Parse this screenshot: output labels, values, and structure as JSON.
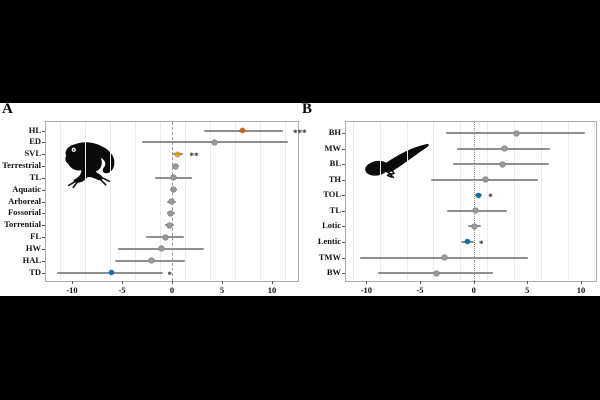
{
  "figure": {
    "background_color": "#000000",
    "strip_background": "#ffffff",
    "point_gray": "#9a9a9a",
    "errorbar_gray": "#8f8f8f",
    "accent_orange": "#d55e00",
    "accent_amber": "#e69f00",
    "accent_blue": "#0072b2"
  },
  "chart_data": [
    {
      "type": "scatter",
      "subtype": "forest-plot",
      "panel_label": "A",
      "animal_icon": "frog-silhouette",
      "xlim": [
        -12.6,
        12.6
      ],
      "xticks": [
        -10,
        -5,
        0,
        5,
        10
      ],
      "gridlines": [
        -11.25,
        -8.75,
        -6.25,
        -3.75,
        -1.25,
        1.25,
        3.75,
        6.25,
        8.75,
        11.25
      ],
      "zero_line": 0,
      "zero_line_style": "dashed",
      "grid": "minor-vertical-only",
      "legend": "none",
      "rows": [
        {
          "label": "HL",
          "value": 7.0,
          "ci": [
            3.2,
            11.1
          ],
          "color": "#d55e00",
          "sig": "***",
          "sig_x": 12.1
        },
        {
          "label": "ED",
          "value": 4.2,
          "ci": [
            -3.0,
            11.6
          ]
        },
        {
          "label": "SVL",
          "value": 0.55,
          "ci": [
            0.05,
            1.1
          ],
          "color": "#e69f00",
          "sig": "**",
          "sig_x": 1.75
        },
        {
          "label": "Terrestrial",
          "value": 0.3,
          "ci": [
            0.0,
            0.65
          ]
        },
        {
          "label": "TL",
          "value": 0.15,
          "ci": [
            -1.7,
            2.0
          ]
        },
        {
          "label": "Aquatic",
          "value": 0.1,
          "ci": [
            -0.25,
            0.45
          ]
        },
        {
          "label": "Arboreal",
          "value": -0.05,
          "ci": [
            -0.5,
            0.4
          ]
        },
        {
          "label": "Fossorial",
          "value": -0.15,
          "ci": [
            -0.55,
            0.25
          ]
        },
        {
          "label": "Torrential",
          "value": -0.3,
          "ci": [
            -0.75,
            0.15
          ]
        },
        {
          "label": "FL",
          "value": -0.7,
          "ci": [
            -2.6,
            1.2
          ]
        },
        {
          "label": "HW",
          "value": -1.1,
          "ci": [
            -5.4,
            3.2
          ]
        },
        {
          "label": "HAL",
          "value": -2.1,
          "ci": [
            -5.7,
            1.3
          ]
        },
        {
          "label": "TD",
          "value": -6.1,
          "ci": [
            -11.5,
            -0.9
          ],
          "color": "#0072b2",
          "sig": "*",
          "sig_x": -0.45
        }
      ]
    },
    {
      "type": "scatter",
      "subtype": "forest-plot",
      "panel_label": "B",
      "animal_icon": "tadpole-silhouette",
      "xlim": [
        -11.9,
        11.4
      ],
      "xticks": [
        -10,
        -5,
        0,
        5,
        10
      ],
      "gridlines": [
        -11.25,
        -8.75,
        -6.25,
        -3.75,
        -1.25,
        1.25,
        3.75,
        6.25,
        8.75,
        11.25
      ],
      "zero_line": 0,
      "zero_line_style": "dotted",
      "grid": "minor-vertical-only",
      "legend": "none",
      "rows": [
        {
          "label": "BH",
          "value": 4.0,
          "ci": [
            -2.6,
            10.4
          ]
        },
        {
          "label": "MW",
          "value": 2.9,
          "ci": [
            -1.6,
            7.1
          ]
        },
        {
          "label": "BL",
          "value": 2.7,
          "ci": [
            -1.9,
            7.0
          ]
        },
        {
          "label": "TH",
          "value": 1.1,
          "ci": [
            -4.0,
            6.0
          ]
        },
        {
          "label": "TOL",
          "value": 0.4,
          "ci": [
            0.1,
            0.8
          ],
          "color": "#0072b2",
          "sig": "*",
          "sig_x": 1.35
        },
        {
          "label": "TL",
          "value": 0.2,
          "ci": [
            -2.5,
            3.1
          ]
        },
        {
          "label": "Lotic",
          "value": 0.1,
          "ci": [
            -0.5,
            0.65
          ]
        },
        {
          "label": "Lentic",
          "value": -0.55,
          "ci": [
            -1.2,
            0.0
          ],
          "color": "#0072b2",
          "sig": "*",
          "sig_x": 0.5
        },
        {
          "label": "TMW",
          "value": -2.7,
          "ci": [
            -10.6,
            5.1
          ]
        },
        {
          "label": "BW",
          "value": -3.5,
          "ci": [
            -8.9,
            1.8
          ]
        }
      ]
    }
  ]
}
